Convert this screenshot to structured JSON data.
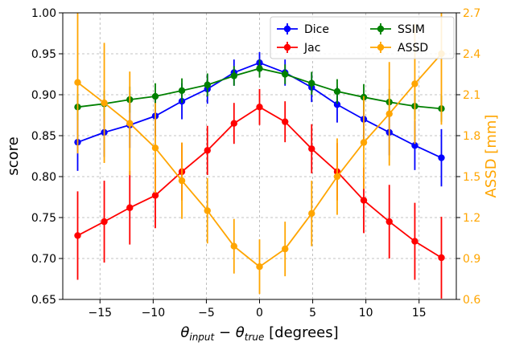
{
  "chart_data": {
    "type": "line",
    "x": [
      -17.1,
      -14.6,
      -12.2,
      -9.8,
      -7.3,
      -4.9,
      -2.4,
      0,
      2.4,
      4.9,
      7.3,
      9.8,
      12.2,
      14.6,
      17.1
    ],
    "xlabel_parts": {
      "theta": "θ",
      "sub_input": "input",
      "minus": " − ",
      "sub_true": "true",
      "unit": " [degrees]"
    },
    "ylabel": "score",
    "y2label": "ASSD [mm]",
    "xlim": [
      -18.5,
      18.5
    ],
    "ylim": [
      0.65,
      1.0
    ],
    "y2lim": [
      0.6,
      2.7
    ],
    "xticks": [
      -15,
      -10,
      -5,
      0,
      5,
      10,
      15
    ],
    "xtick_labels": [
      "−15",
      "−10",
      "−5",
      "0",
      "5",
      "10",
      "15"
    ],
    "yticks": [
      0.65,
      0.7,
      0.75,
      0.8,
      0.85,
      0.9,
      0.95,
      1.0
    ],
    "ytick_labels": [
      "0.65",
      "0.70",
      "0.75",
      "0.80",
      "0.85",
      "0.90",
      "0.95",
      "1.00"
    ],
    "y2ticks": [
      0.6,
      0.9,
      1.2,
      1.5,
      1.8,
      2.1,
      2.4,
      2.7
    ],
    "y2tick_labels": [
      "0.6",
      "0.9",
      "1.2",
      "1.5",
      "1.8",
      "2.1",
      "2.4",
      "2.7"
    ],
    "grid": true,
    "legend_position": "top-right",
    "series": [
      {
        "name": "Dice",
        "color": "#0000ff",
        "axis": "left",
        "values": [
          0.842,
          0.854,
          0.863,
          0.874,
          0.892,
          0.907,
          0.927,
          0.939,
          0.927,
          0.909,
          0.888,
          0.87,
          0.854,
          0.838,
          0.823
        ],
        "errors": [
          0.035,
          0.03,
          0.028,
          0.025,
          0.022,
          0.018,
          0.016,
          0.013,
          0.016,
          0.018,
          0.022,
          0.025,
          0.028,
          0.03,
          0.035
        ]
      },
      {
        "name": "Jac",
        "color": "#ff0000",
        "axis": "left",
        "values": [
          0.728,
          0.745,
          0.762,
          0.777,
          0.806,
          0.832,
          0.865,
          0.885,
          0.867,
          0.834,
          0.806,
          0.771,
          0.745,
          0.721,
          0.701
        ],
        "errors": [
          0.054,
          0.05,
          0.045,
          0.04,
          0.035,
          0.03,
          0.025,
          0.022,
          0.025,
          0.03,
          0.035,
          0.04,
          0.045,
          0.047,
          0.05
        ]
      },
      {
        "name": "SSIM",
        "color": "#008000",
        "axis": "left",
        "values": [
          0.885,
          0.889,
          0.894,
          0.898,
          0.905,
          0.912,
          0.923,
          0.932,
          0.925,
          0.914,
          0.904,
          0.897,
          0.891,
          0.886,
          0.883
        ],
        "errors": [
          0.016,
          0.016,
          0.016,
          0.016,
          0.015,
          0.014,
          0.012,
          0.011,
          0.012,
          0.014,
          0.015,
          0.016,
          0.016,
          0.016,
          0.016
        ]
      },
      {
        "name": "ASSD",
        "color": "#ffa500",
        "axis": "right",
        "values": [
          2.19,
          2.04,
          1.89,
          1.71,
          1.47,
          1.25,
          0.99,
          0.84,
          0.97,
          1.23,
          1.5,
          1.75,
          1.96,
          2.18,
          2.4
        ],
        "errors": [
          0.52,
          0.44,
          0.38,
          0.33,
          0.28,
          0.24,
          0.2,
          0.2,
          0.2,
          0.24,
          0.28,
          0.34,
          0.38,
          0.44,
          0.52
        ]
      }
    ]
  }
}
